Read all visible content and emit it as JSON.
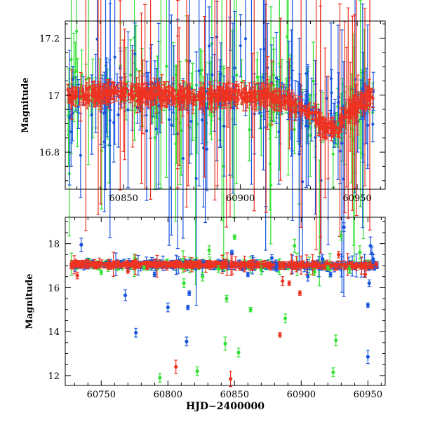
{
  "chart_data": [
    {
      "type": "scatter",
      "title": "",
      "xlabel": "",
      "ylabel": "Magnitude",
      "xlim": [
        60825,
        60962
      ],
      "ylim": [
        17.26,
        16.67
      ],
      "y_inverted": true,
      "xticks": [
        60850,
        60900,
        60950
      ],
      "xtick_labels": [
        "60850",
        "60900",
        "60950"
      ],
      "yticks": [
        16.8,
        17.0,
        17.2
      ],
      "ytick_labels": [
        "16.8",
        "17",
        "17.2"
      ],
      "baseline": [
        {
          "x": 60826,
          "y": 17.0
        },
        {
          "x": 60838,
          "y": 17.0
        },
        {
          "x": 60850,
          "y": 17.01
        },
        {
          "x": 60865,
          "y": 17.0
        },
        {
          "x": 60880,
          "y": 16.99
        },
        {
          "x": 60895,
          "y": 17.0
        },
        {
          "x": 60910,
          "y": 17.0
        },
        {
          "x": 60920,
          "y": 16.98
        },
        {
          "x": 60930,
          "y": 16.94
        },
        {
          "x": 60936,
          "y": 16.89
        },
        {
          "x": 60941,
          "y": 16.88
        },
        {
          "x": 60946,
          "y": 16.94
        },
        {
          "x": 60952,
          "y": 16.98
        },
        {
          "x": 60957,
          "y": 17.0
        }
      ],
      "series": [
        {
          "name": "green",
          "color": "#33e033"
        },
        {
          "name": "blue",
          "color": "#1a55e0"
        },
        {
          "name": "red",
          "color": "#ee3322"
        }
      ]
    },
    {
      "type": "scatter",
      "title": "",
      "xlabel": "HJD−2400000",
      "ylabel": "Magnitude",
      "xlim": [
        60723,
        60963
      ],
      "ylim": [
        19.2,
        11.55
      ],
      "y_inverted": true,
      "xticks": [
        60750,
        60800,
        60850,
        60900,
        60950
      ],
      "xtick_labels": [
        "60750",
        "60800",
        "60850",
        "60900",
        "60950"
      ],
      "yticks": [
        12,
        14,
        16,
        18
      ],
      "ytick_labels": [
        "12",
        "14",
        "16",
        "18"
      ],
      "baseline": [
        {
          "x": 60727,
          "y": 17.05
        },
        {
          "x": 60800,
          "y": 17.05
        },
        {
          "x": 60900,
          "y": 17.02
        },
        {
          "x": 60930,
          "y": 17.0
        },
        {
          "x": 60957,
          "y": 17.02
        }
      ],
      "outliers": [
        {
          "x": 60732,
          "y": 16.55,
          "err": 0.15,
          "series": "red"
        },
        {
          "x": 60735,
          "y": 17.95,
          "err": 0.3,
          "series": "blue"
        },
        {
          "x": 60750,
          "y": 16.7,
          "err": 0.1,
          "series": "green"
        },
        {
          "x": 60768,
          "y": 15.65,
          "err": 0.25,
          "series": "blue"
        },
        {
          "x": 60770,
          "y": 16.75,
          "err": 0.1,
          "series": "red"
        },
        {
          "x": 60776,
          "y": 13.95,
          "err": 0.2,
          "series": "blue"
        },
        {
          "x": 60782,
          "y": 16.9,
          "err": 0.1,
          "series": "green"
        },
        {
          "x": 60790,
          "y": 16.6,
          "err": 0.1,
          "series": "blue"
        },
        {
          "x": 60794,
          "y": 11.9,
          "err": 0.2,
          "series": "green"
        },
        {
          "x": 60800,
          "y": 15.1,
          "err": 0.2,
          "series": "blue"
        },
        {
          "x": 60806,
          "y": 12.4,
          "err": 0.3,
          "series": "red"
        },
        {
          "x": 60812,
          "y": 16.2,
          "err": 0.2,
          "series": "green"
        },
        {
          "x": 60814,
          "y": 13.55,
          "err": 0.2,
          "series": "blue"
        },
        {
          "x": 60815,
          "y": 15.1,
          "err": 0.1,
          "series": "blue"
        },
        {
          "x": 60816,
          "y": 15.75,
          "err": 0.1,
          "series": "blue"
        },
        {
          "x": 60822,
          "y": 12.2,
          "err": 0.2,
          "series": "green"
        },
        {
          "x": 60826,
          "y": 16.5,
          "err": 0.2,
          "series": "green"
        },
        {
          "x": 60831,
          "y": 17.7,
          "err": 0.2,
          "series": "green"
        },
        {
          "x": 60838,
          "y": 16.85,
          "err": 0.15,
          "series": "green"
        },
        {
          "x": 60843,
          "y": 13.45,
          "err": 0.3,
          "series": "green"
        },
        {
          "x": 60844,
          "y": 15.5,
          "err": 0.15,
          "series": "green"
        },
        {
          "x": 60847,
          "y": 11.85,
          "err": 0.35,
          "series": "red"
        },
        {
          "x": 60848,
          "y": 17.6,
          "err": 0.1,
          "series": "blue"
        },
        {
          "x": 60850,
          "y": 18.3,
          "err": 0.1,
          "series": "green"
        },
        {
          "x": 60853,
          "y": 13.05,
          "err": 0.2,
          "series": "green"
        },
        {
          "x": 60860,
          "y": 16.6,
          "err": 0.1,
          "series": "blue"
        },
        {
          "x": 60862,
          "y": 15.0,
          "err": 0.1,
          "series": "green"
        },
        {
          "x": 60870,
          "y": 16.8,
          "err": 0.2,
          "series": "green"
        },
        {
          "x": 60878,
          "y": 17.35,
          "err": 0.15,
          "series": "blue"
        },
        {
          "x": 60884,
          "y": 13.85,
          "err": 0.1,
          "series": "red"
        },
        {
          "x": 60886,
          "y": 16.3,
          "err": 0.2,
          "series": "red"
        },
        {
          "x": 60888,
          "y": 14.6,
          "err": 0.2,
          "series": "green"
        },
        {
          "x": 60891,
          "y": 16.2,
          "err": 0.1,
          "series": "red"
        },
        {
          "x": 60895,
          "y": 17.9,
          "err": 0.3,
          "series": "green"
        },
        {
          "x": 60899,
          "y": 15.75,
          "err": 0.1,
          "series": "red"
        },
        {
          "x": 60905,
          "y": 16.5,
          "err": 0.2,
          "series": "blue"
        },
        {
          "x": 60910,
          "y": 16.7,
          "err": 0.15,
          "series": "green"
        },
        {
          "x": 60916,
          "y": 17.3,
          "err": 0.2,
          "series": "blue"
        },
        {
          "x": 60920,
          "y": 16.9,
          "err": 0.1,
          "series": "green"
        },
        {
          "x": 60922,
          "y": 16.6,
          "err": 0.1,
          "series": "blue"
        },
        {
          "x": 60924,
          "y": 12.15,
          "err": 0.2,
          "series": "green"
        },
        {
          "x": 60926,
          "y": 13.6,
          "err": 0.25,
          "series": "green"
        },
        {
          "x": 60928,
          "y": 17.5,
          "err": 0.15,
          "series": "red"
        },
        {
          "x": 60930,
          "y": 18.35,
          "err": 0.2,
          "series": "green"
        },
        {
          "x": 60932,
          "y": 18.75,
          "err": 0.2,
          "series": "blue"
        },
        {
          "x": 60936,
          "y": 16.85,
          "err": 0.15,
          "series": "green"
        },
        {
          "x": 60944,
          "y": 17.6,
          "err": 0.3,
          "series": "green"
        },
        {
          "x": 60948,
          "y": 16.6,
          "err": 0.15,
          "series": "red"
        },
        {
          "x": 60950,
          "y": 12.85,
          "err": 0.3,
          "series": "blue"
        },
        {
          "x": 60950,
          "y": 15.2,
          "err": 0.1,
          "series": "blue"
        },
        {
          "x": 60951,
          "y": 16.2,
          "err": 0.15,
          "series": "blue"
        },
        {
          "x": 60952,
          "y": 17.9,
          "err": 0.4,
          "series": "blue"
        },
        {
          "x": 60953,
          "y": 17.55,
          "err": 0.3,
          "series": "blue"
        },
        {
          "x": 60954,
          "y": 17.3,
          "err": 0.2,
          "series": "blue"
        }
      ],
      "series": [
        {
          "name": "green",
          "color": "#33e033"
        },
        {
          "name": "blue",
          "color": "#1a55e0"
        },
        {
          "name": "red",
          "color": "#ee3322"
        }
      ]
    }
  ]
}
